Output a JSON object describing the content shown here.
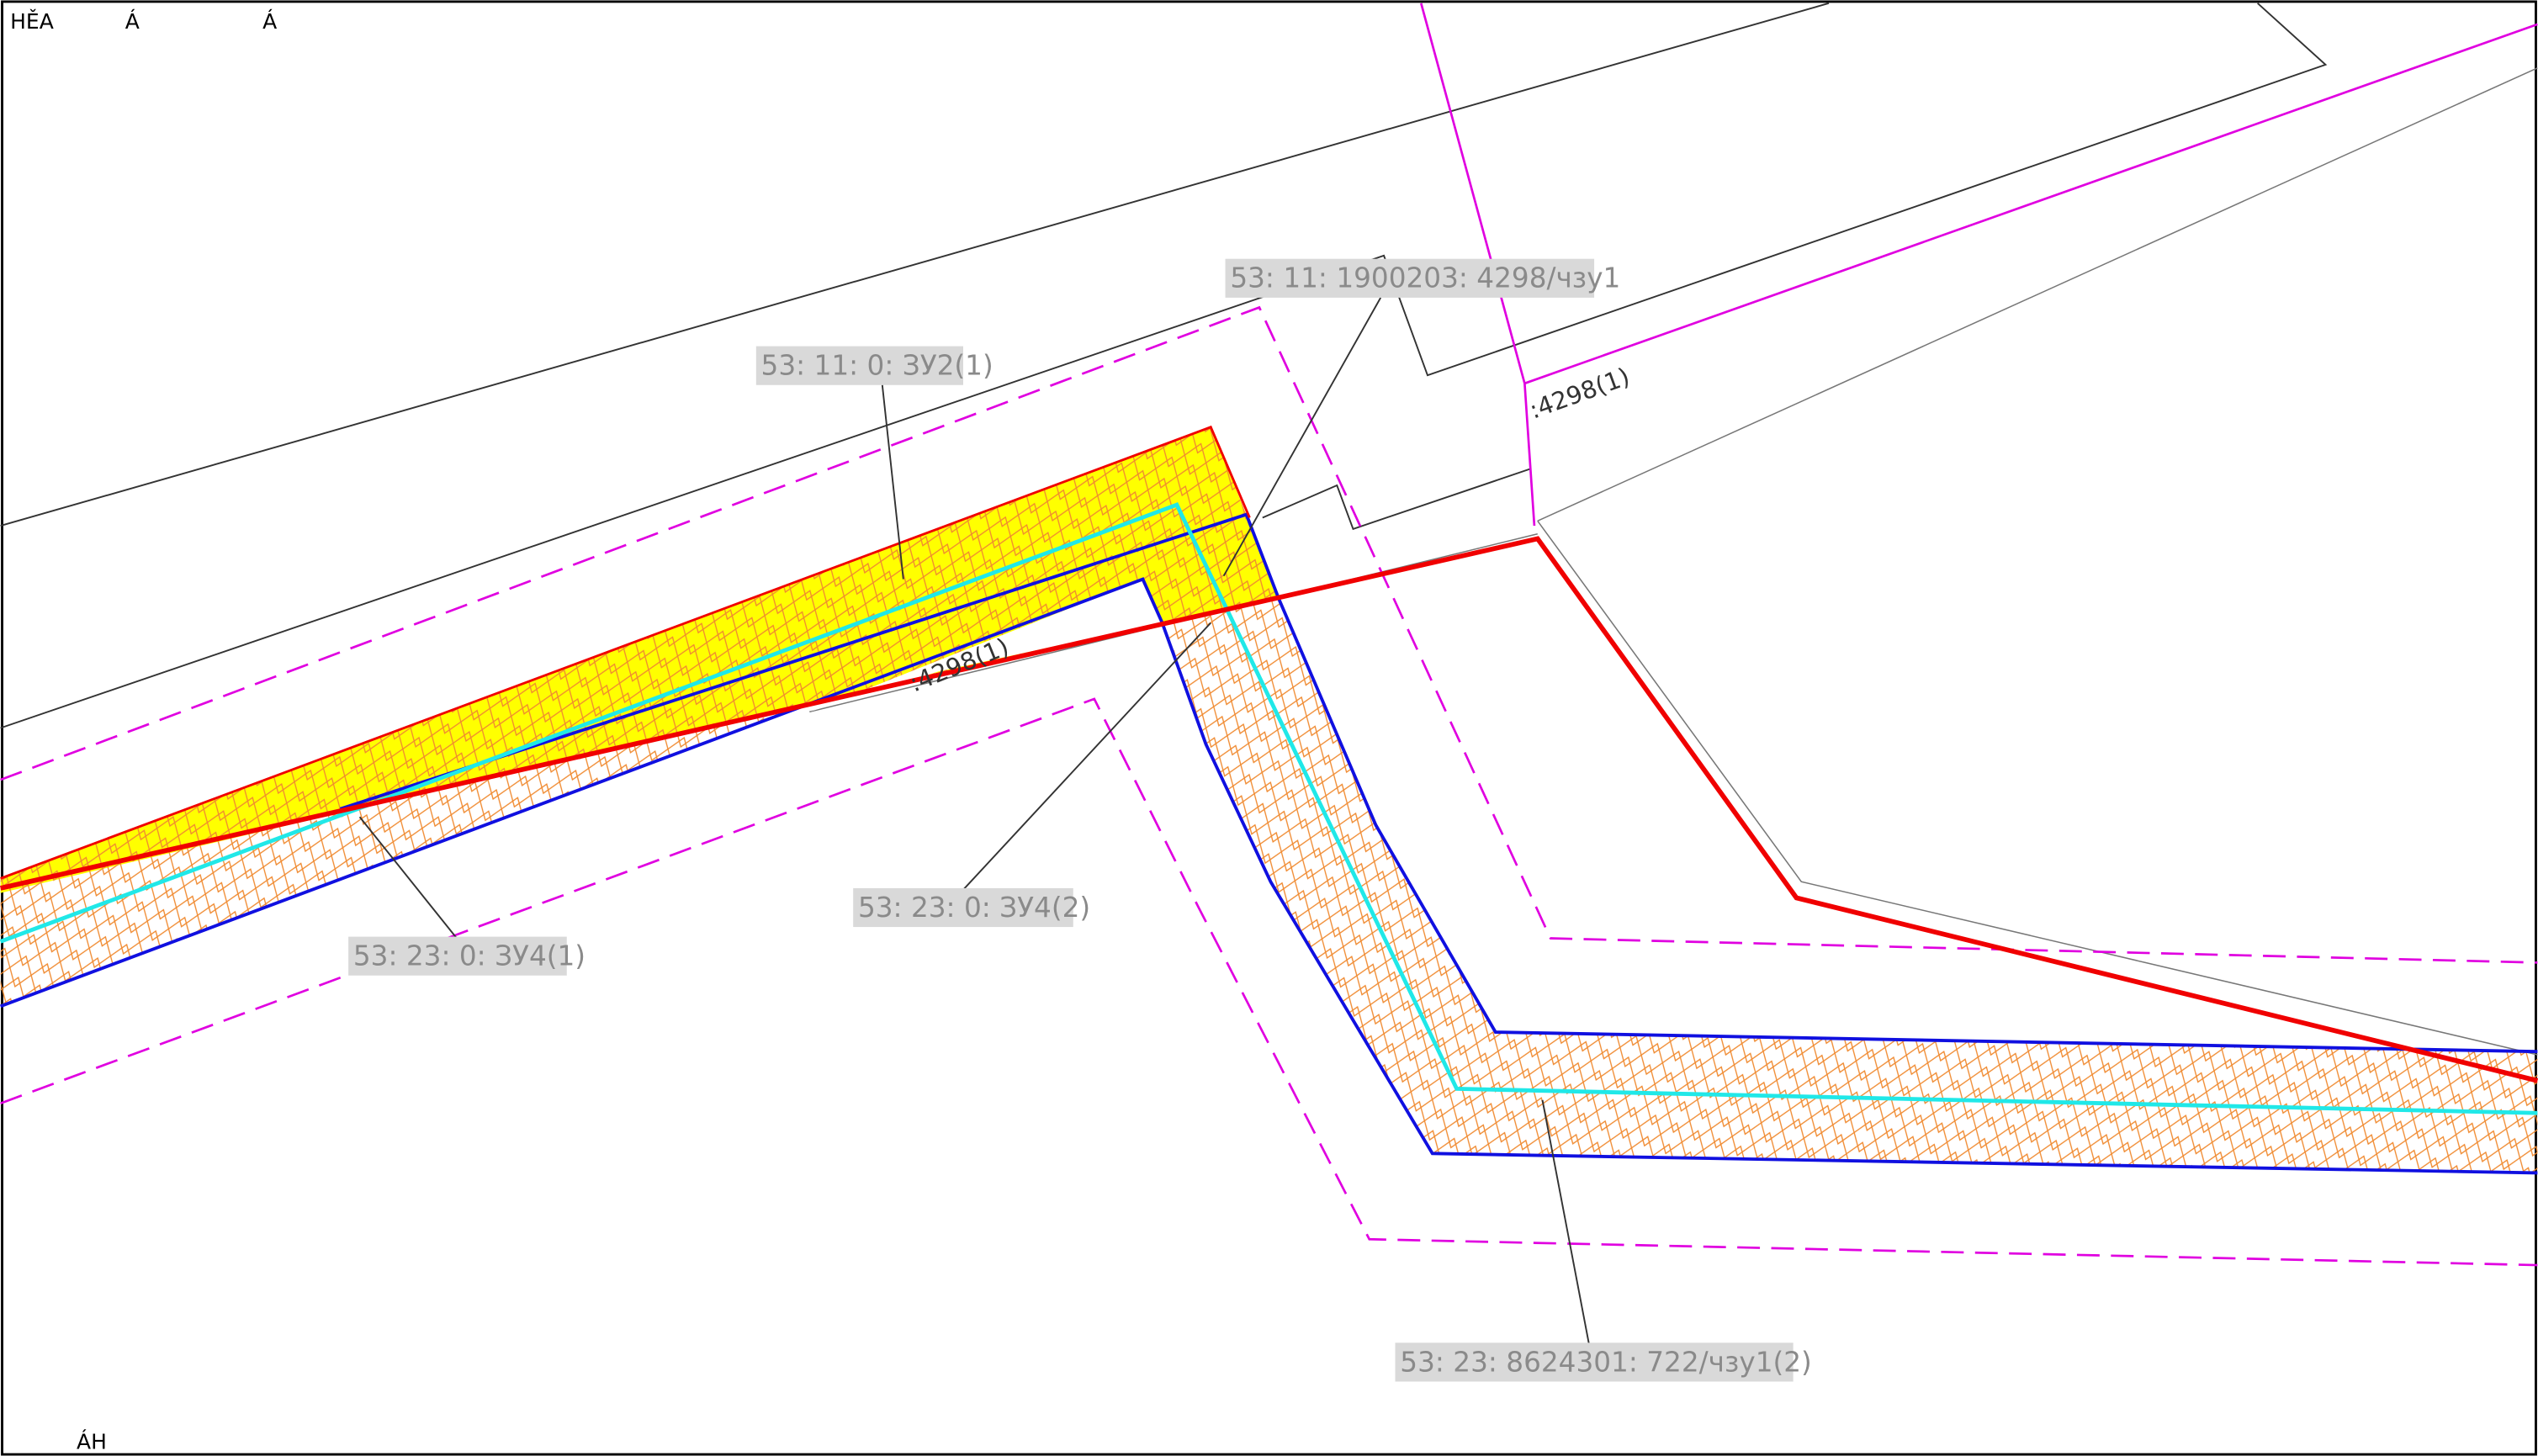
{
  "corner_marks": [
    "HĚA",
    "Á",
    "Á",
    "ÁН"
  ],
  "parcel_labels": [
    "53: 11: 1900203: 4298/чзу1",
    "53: 11: 0: ЗУ2(1)",
    "53: 23: 0: ЗУ4(2)",
    "53: 23: 0: ЗУ4(1)",
    "53: 23: 8624301: 722/чзу1(2)"
  ],
  "boundary_labels": [
    ":4298(1)",
    ":4298(1)"
  ]
}
